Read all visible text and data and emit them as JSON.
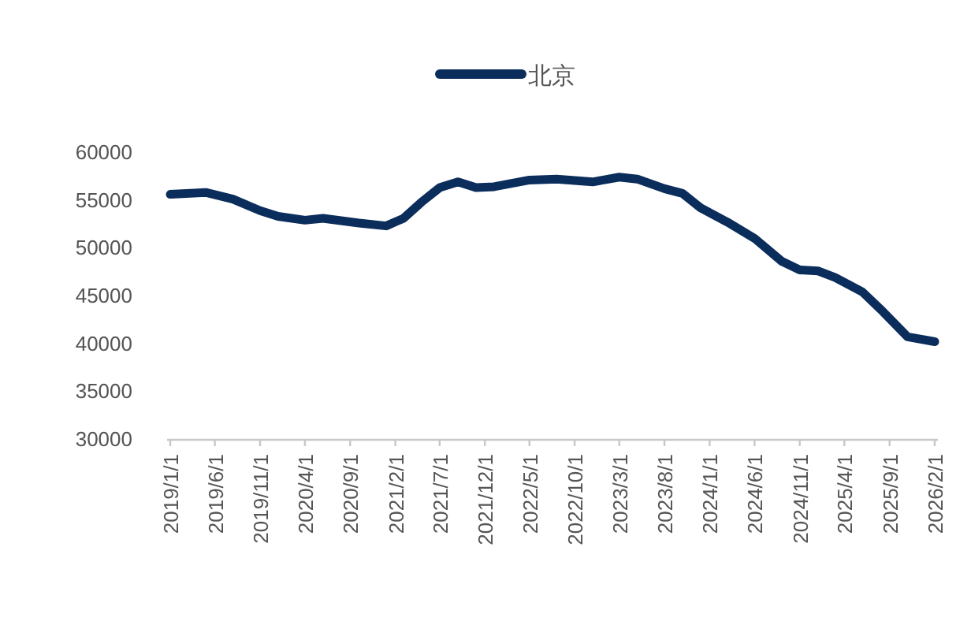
{
  "chart_data": {
    "type": "line",
    "legend": "top",
    "x": [
      "2019-01",
      "2019-05",
      "2019-08",
      "2019-11",
      "2020-01",
      "2020-04",
      "2020-06",
      "2020-10",
      "2021-01",
      "2021-03",
      "2021-05",
      "2021-07",
      "2021-09",
      "2021-11",
      "2022-01",
      "2022-05",
      "2022-08",
      "2022-12",
      "2023-03",
      "2023-05",
      "2023-08",
      "2023-10",
      "2023-12",
      "2024-03",
      "2024-06",
      "2024-09",
      "2024-11",
      "2025-01",
      "2025-03",
      "2025-06",
      "2025-08",
      "2025-11",
      "2026-02"
    ],
    "series": [
      {
        "name": "北京",
        "color": "#0b2d5b",
        "values": [
          55500,
          55700,
          55000,
          53800,
          53200,
          52800,
          53000,
          52500,
          52200,
          53000,
          54700,
          56200,
          56800,
          56200,
          56300,
          57000,
          57100,
          56800,
          57300,
          57100,
          56100,
          55600,
          54100,
          52600,
          50900,
          48500,
          47600,
          47500,
          46800,
          45300,
          43500,
          40600,
          40100
        ]
      }
    ],
    "xlim": [
      "2019-01",
      "2026-02"
    ],
    "xticks": [
      {
        "value": "2019-01",
        "label": "2019/1/1"
      },
      {
        "value": "2019-06",
        "label": "2019/6/1"
      },
      {
        "value": "2019-11",
        "label": "2019/11/1"
      },
      {
        "value": "2020-04",
        "label": "2020/4/1"
      },
      {
        "value": "2020-09",
        "label": "2020/9/1"
      },
      {
        "value": "2021-02",
        "label": "2021/2/1"
      },
      {
        "value": "2021-07",
        "label": "2021/7/1"
      },
      {
        "value": "2021-12",
        "label": "2021/12/1"
      },
      {
        "value": "2022-05",
        "label": "2022/5/1"
      },
      {
        "value": "2022-10",
        "label": "2022/10/1"
      },
      {
        "value": "2023-03",
        "label": "2023/3/1"
      },
      {
        "value": "2023-08",
        "label": "2023/8/1"
      },
      {
        "value": "2024-01",
        "label": "2024/1/1"
      },
      {
        "value": "2024-06",
        "label": "2024/6/1"
      },
      {
        "value": "2024-11",
        "label": "2024/11/1"
      },
      {
        "value": "2025-04",
        "label": "2025/4/1"
      },
      {
        "value": "2025-09",
        "label": "2025/9/1"
      },
      {
        "value": "2026-02",
        "label": "2026/2/1"
      }
    ],
    "ylim": [
      30000,
      60000
    ],
    "yticks": [
      30000,
      35000,
      40000,
      45000,
      50000,
      55000,
      60000
    ],
    "grid": false
  }
}
